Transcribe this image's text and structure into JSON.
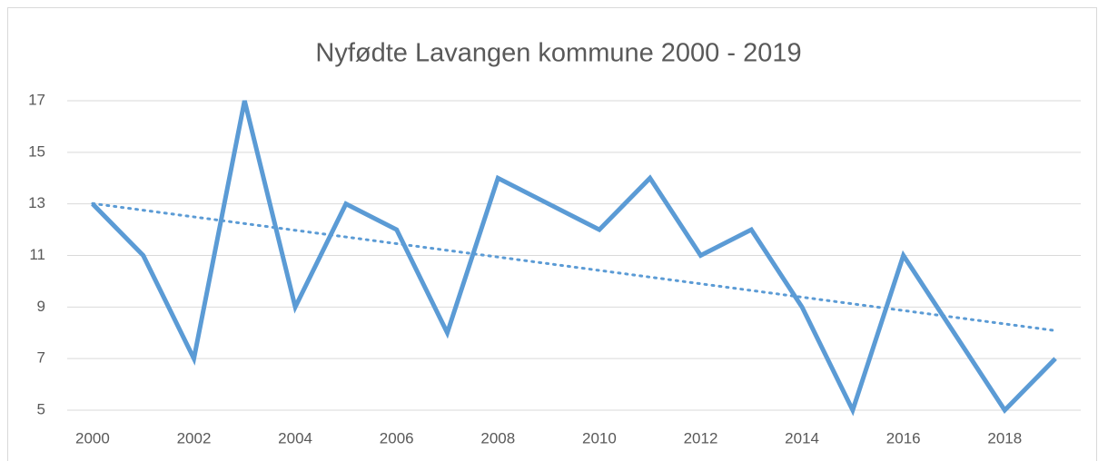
{
  "chart_data": {
    "type": "line",
    "title": "Nyfødte Lavangen kommune 2000 - 2019",
    "categories": [
      "2000",
      null,
      "2002",
      null,
      "2004",
      null,
      "2006",
      null,
      "2008",
      null,
      "2010",
      null,
      "2012",
      null,
      "2014",
      null,
      "2016",
      null,
      "2018",
      null
    ],
    "series": [
      {
        "name": "Nyfødte",
        "color": "#5b9bd5",
        "values": [
          13,
          11,
          7,
          17,
          9,
          13,
          12,
          8,
          14,
          13,
          12,
          14,
          11,
          12,
          9,
          5,
          11,
          8,
          5,
          7
        ]
      }
    ],
    "trendline": "linear",
    "ylim": [
      5,
      17
    ],
    "yticks": [
      5,
      7,
      9,
      11,
      13,
      15,
      17
    ],
    "grid": true
  }
}
